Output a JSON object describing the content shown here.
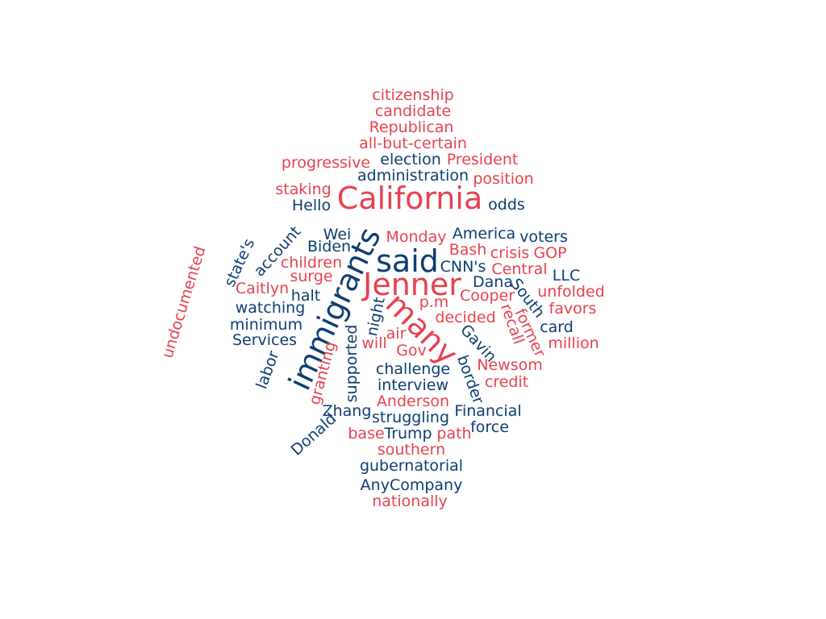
{
  "colors": {
    "red": "#e8424d",
    "navy": "#0e3d72"
  },
  "words": [
    {
      "text": "citizenship",
      "color": "red"
    },
    {
      "text": "candidate",
      "color": "red"
    },
    {
      "text": "Republican",
      "color": "red"
    },
    {
      "text": "all-but-certain",
      "color": "red"
    },
    {
      "text": "progressive",
      "color": "red"
    },
    {
      "text": "election",
      "color": "navy"
    },
    {
      "text": "President",
      "color": "red"
    },
    {
      "text": "administration",
      "color": "navy"
    },
    {
      "text": "position",
      "color": "red"
    },
    {
      "text": "staking",
      "color": "red"
    },
    {
      "text": "California",
      "color": "red"
    },
    {
      "text": "Hello",
      "color": "navy"
    },
    {
      "text": "odds",
      "color": "navy"
    },
    {
      "text": "Wei",
      "color": "navy"
    },
    {
      "text": "immigrants",
      "color": "navy"
    },
    {
      "text": "Monday",
      "color": "red"
    },
    {
      "text": "America",
      "color": "navy"
    },
    {
      "text": "voters",
      "color": "navy"
    },
    {
      "text": "Biden",
      "color": "navy"
    },
    {
      "text": "said",
      "color": "navy"
    },
    {
      "text": "Bash",
      "color": "red"
    },
    {
      "text": "crisis",
      "color": "red"
    },
    {
      "text": "GOP",
      "color": "red"
    },
    {
      "text": "state's",
      "color": "navy"
    },
    {
      "text": "account",
      "color": "navy"
    },
    {
      "text": "children",
      "color": "red"
    },
    {
      "text": "CNN's",
      "color": "navy"
    },
    {
      "text": "Central",
      "color": "red"
    },
    {
      "text": "LLC",
      "color": "navy"
    },
    {
      "text": "undocumented",
      "color": "red"
    },
    {
      "text": "surge",
      "color": "red"
    },
    {
      "text": "Jenner",
      "color": "red"
    },
    {
      "text": "Dana",
      "color": "navy"
    },
    {
      "text": "South",
      "color": "navy"
    },
    {
      "text": "unfolded",
      "color": "red"
    },
    {
      "text": "Caitlyn",
      "color": "red"
    },
    {
      "text": "halt",
      "color": "navy"
    },
    {
      "text": "Cooper",
      "color": "red"
    },
    {
      "text": "favors",
      "color": "red"
    },
    {
      "text": "watching",
      "color": "navy"
    },
    {
      "text": "p.m",
      "color": "red"
    },
    {
      "text": "night",
      "color": "navy"
    },
    {
      "text": "many",
      "color": "red"
    },
    {
      "text": "recall",
      "color": "red"
    },
    {
      "text": "former",
      "color": "red"
    },
    {
      "text": "minimum",
      "color": "navy"
    },
    {
      "text": "decided",
      "color": "red"
    },
    {
      "text": "card",
      "color": "navy"
    },
    {
      "text": "Services",
      "color": "navy"
    },
    {
      "text": "air",
      "color": "red"
    },
    {
      "text": "will",
      "color": "red"
    },
    {
      "text": "Gavin",
      "color": "navy"
    },
    {
      "text": "million",
      "color": "red"
    },
    {
      "text": "Gov",
      "color": "red"
    },
    {
      "text": "labor",
      "color": "navy"
    },
    {
      "text": "granting",
      "color": "red"
    },
    {
      "text": "supported",
      "color": "navy"
    },
    {
      "text": "challenge",
      "color": "navy"
    },
    {
      "text": "Newsom",
      "color": "red"
    },
    {
      "text": "border",
      "color": "navy"
    },
    {
      "text": "credit",
      "color": "red"
    },
    {
      "text": "interview",
      "color": "navy"
    },
    {
      "text": "Anderson",
      "color": "red"
    },
    {
      "text": "Zhang",
      "color": "navy"
    },
    {
      "text": "struggling",
      "color": "navy"
    },
    {
      "text": "Financial",
      "color": "navy"
    },
    {
      "text": "force",
      "color": "navy"
    },
    {
      "text": "base",
      "color": "red"
    },
    {
      "text": "Trump",
      "color": "navy"
    },
    {
      "text": "path",
      "color": "red"
    },
    {
      "text": "Donald",
      "color": "navy"
    },
    {
      "text": "southern",
      "color": "red"
    },
    {
      "text": "gubernatorial",
      "color": "navy"
    },
    {
      "text": "AnyCompany",
      "color": "navy"
    },
    {
      "text": "nationally",
      "color": "red"
    }
  ]
}
